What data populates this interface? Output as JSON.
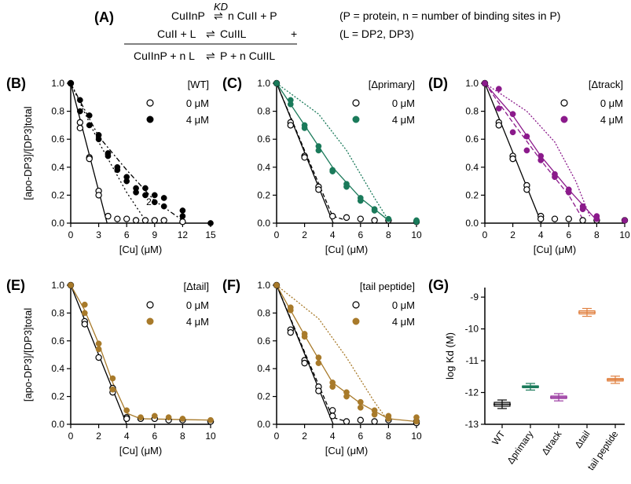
{
  "equations": {
    "label": "(A)",
    "row1_left": "CuIInP",
    "row1_arrow": "⇌",
    "row1_k": "KD",
    "row1_right": "n CuII + P",
    "row2_left": "CuII + L",
    "row2_arrow": "⇌",
    "row2_right": "CuIIL",
    "plus": "+",
    "row3_left": "CuIInP + n L",
    "row3_arrow": "⇌",
    "row3_right": "P + n CuIIL",
    "note1": "(P = protein, n = number of binding sites in P)",
    "note2": "(L = DP2, DP3)"
  },
  "colors": {
    "WT": "#000000",
    "primary": "#1a7a5a",
    "track": "#8b1a8b",
    "tail": "#a87a2a",
    "tailpep": "#a87a2a",
    "log_primary": "#1a7a5a",
    "log_track": "#9a3aa0",
    "log_tail": "#e08040",
    "log_tailpep": "#e08040"
  },
  "chart_data": [
    {
      "id": "B",
      "panel_label": "(B)",
      "type": "scatter",
      "legend_title": "[WT]",
      "legend": [
        "0 μM",
        "4 μM"
      ],
      "xlabel": "[Cu] (μM)",
      "ylabel": "[apo-DP3]/[DP3]total",
      "xlim": [
        0,
        15
      ],
      "ylim": [
        0,
        1
      ],
      "xticks": [
        "0",
        "3",
        "6",
        "9",
        "12",
        "15"
      ],
      "yticks": [
        "0.0",
        "0.2",
        "0.4",
        "0.6",
        "0.8",
        "1.0"
      ],
      "annotation": "2",
      "series": [
        {
          "name": "0 μM",
          "style": "open",
          "x": [
            0,
            1,
            1,
            2,
            2,
            3,
            3,
            4,
            5,
            6,
            7,
            8,
            9,
            10,
            12
          ],
          "y": [
            1,
            0.72,
            0.68,
            0.47,
            0.46,
            0.23,
            0.2,
            0.05,
            0.03,
            0.03,
            0.02,
            0.02,
            0.02,
            0.02,
            0.01
          ]
        },
        {
          "name": "4 μM",
          "style": "filled",
          "x": [
            0,
            1,
            1,
            2,
            2,
            3,
            3,
            4,
            4,
            5,
            5,
            6,
            6,
            7,
            7,
            8,
            8,
            9,
            9,
            10,
            10,
            12,
            12,
            15
          ],
          "y": [
            1,
            0.88,
            0.8,
            0.77,
            0.7,
            0.63,
            0.6,
            0.5,
            0.48,
            0.4,
            0.38,
            0.33,
            0.3,
            0.25,
            0.22,
            0.25,
            0.2,
            0.2,
            0.15,
            0.18,
            0.12,
            0.09,
            0.05,
            0
          ]
        }
      ]
    },
    {
      "id": "C",
      "panel_label": "(C)",
      "type": "scatter",
      "legend_title": "[Δprimary]",
      "legend": [
        "0 μM",
        "4 μM"
      ],
      "xlabel": "[Cu] (μM)",
      "ylabel": "",
      "xlim": [
        0,
        10
      ],
      "ylim": [
        0,
        1
      ],
      "xticks": [
        "0",
        "2",
        "4",
        "6",
        "8",
        "10"
      ],
      "yticks": [
        "0.0",
        "0.2",
        "0.4",
        "0.6",
        "0.8",
        "1.0"
      ],
      "series": [
        {
          "name": "0 μM",
          "style": "open",
          "x": [
            0,
            1,
            1,
            2,
            2,
            3,
            3,
            4,
            5,
            6,
            7,
            8,
            10
          ],
          "y": [
            1,
            0.72,
            0.7,
            0.48,
            0.47,
            0.26,
            0.24,
            0.05,
            0.04,
            0.03,
            0.02,
            0.02,
            0.01
          ]
        },
        {
          "name": "4 μM",
          "style": "filled",
          "x": [
            0,
            1,
            1,
            2,
            2,
            3,
            3,
            4,
            4,
            5,
            5,
            6,
            6,
            7,
            7,
            8,
            10,
            10
          ],
          "y": [
            1,
            0.88,
            0.85,
            0.7,
            0.68,
            0.55,
            0.52,
            0.38,
            0.37,
            0.28,
            0.26,
            0.18,
            0.16,
            0.1,
            0.09,
            0.03,
            0.02,
            0.01
          ]
        }
      ]
    },
    {
      "id": "D",
      "panel_label": "(D)",
      "type": "scatter",
      "legend_title": "[Δtrack]",
      "legend": [
        "0 μM",
        "4 μM"
      ],
      "xlabel": "[Cu] (μM)",
      "ylabel": "",
      "xlim": [
        0,
        10
      ],
      "ylim": [
        0,
        1
      ],
      "xticks": [
        "0",
        "2",
        "4",
        "6",
        "8",
        "10"
      ],
      "yticks": [
        "0.0",
        "0.2",
        "0.4",
        "0.6",
        "0.8",
        "1.0"
      ],
      "series": [
        {
          "name": "0 μM",
          "style": "open",
          "x": [
            0,
            1,
            1,
            2,
            2,
            3,
            3,
            4,
            4,
            5,
            6,
            7,
            8,
            10
          ],
          "y": [
            1,
            0.72,
            0.7,
            0.48,
            0.46,
            0.27,
            0.24,
            0.05,
            0.03,
            0.03,
            0.03,
            0.02,
            0.02,
            0.02
          ]
        },
        {
          "name": "4 μM",
          "style": "filled",
          "x": [
            0,
            1,
            1,
            2,
            2,
            3,
            3,
            4,
            4,
            5,
            5,
            6,
            6,
            7,
            7,
            8,
            8,
            10
          ],
          "y": [
            1,
            0.96,
            0.82,
            0.78,
            0.65,
            0.62,
            0.52,
            0.48,
            0.45,
            0.35,
            0.33,
            0.24,
            0.22,
            0.12,
            0.1,
            0.05,
            0.03,
            0.02
          ]
        }
      ]
    },
    {
      "id": "E",
      "panel_label": "(E)",
      "type": "scatter",
      "legend_title": "[Δtail]",
      "legend": [
        "0 μM",
        "4 μM"
      ],
      "xlabel": "[Cu] (μM)",
      "ylabel": "[apo-DP3]/[DP3]total",
      "xlim": [
        0,
        10
      ],
      "ylim": [
        0,
        1
      ],
      "xticks": [
        "0",
        "2",
        "4",
        "6",
        "8",
        "10"
      ],
      "yticks": [
        "0.0",
        "0.2",
        "0.4",
        "0.6",
        "0.8",
        "1.0"
      ],
      "series": [
        {
          "name": "0 μM",
          "style": "open",
          "x": [
            0,
            1,
            1,
            2,
            3,
            3,
            4,
            4,
            5,
            6,
            7,
            8,
            10,
            10
          ],
          "y": [
            1,
            0.74,
            0.72,
            0.48,
            0.26,
            0.23,
            0.05,
            0.04,
            0.04,
            0.04,
            0.03,
            0.03,
            0.02,
            0.02
          ]
        },
        {
          "name": "4 μM",
          "style": "filled",
          "x": [
            0,
            1,
            1,
            2,
            2,
            3,
            3,
            4,
            5,
            6,
            7,
            8,
            10
          ],
          "y": [
            1,
            0.86,
            0.8,
            0.58,
            0.54,
            0.33,
            0.25,
            0.1,
            0.05,
            0.06,
            0.05,
            0.04,
            0.03
          ]
        }
      ]
    },
    {
      "id": "F",
      "panel_label": "(F)",
      "type": "scatter",
      "legend_title": "[tail peptide]",
      "legend": [
        "0 μM",
        "4 μM"
      ],
      "xlabel": "[Cu] (μM)",
      "ylabel": "",
      "xlim": [
        0,
        10
      ],
      "ylim": [
        0,
        1
      ],
      "xticks": [
        "0",
        "2",
        "4",
        "6",
        "8",
        "10"
      ],
      "yticks": [
        "0.0",
        "0.2",
        "0.4",
        "0.6",
        "0.8",
        "1.0"
      ],
      "series": [
        {
          "name": "0 μM",
          "style": "open",
          "x": [
            0,
            1,
            1,
            2,
            2,
            3,
            3,
            4,
            4,
            5,
            6,
            7,
            8,
            10,
            10
          ],
          "y": [
            1,
            0.68,
            0.66,
            0.46,
            0.44,
            0.27,
            0.24,
            0.1,
            0.06,
            0.02,
            0.03,
            0.02,
            0.03,
            0.02,
            0.01
          ]
        },
        {
          "name": "4 μM",
          "style": "filled",
          "x": [
            0,
            1,
            1,
            2,
            2,
            3,
            3,
            4,
            4,
            5,
            5,
            6,
            6,
            7,
            7,
            8,
            8,
            10,
            10
          ],
          "y": [
            1,
            0.84,
            0.82,
            0.65,
            0.63,
            0.48,
            0.44,
            0.3,
            0.27,
            0.23,
            0.2,
            0.16,
            0.12,
            0.1,
            0.07,
            0.06,
            0.04,
            0.05,
            0.02
          ]
        }
      ]
    },
    {
      "id": "G",
      "panel_label": "(G)",
      "type": "box",
      "xlabel": "",
      "ylabel": "log Kd (M)",
      "ylim": [
        -13,
        -8.7
      ],
      "yticks": [
        "-13",
        "-12",
        "-11",
        "-10",
        "-9"
      ],
      "categories": [
        "WT",
        "Δprimary",
        "Δtrack",
        "Δtail",
        "tail peptide"
      ],
      "values": [
        -12.37,
        -11.82,
        -12.15,
        -9.48,
        -11.6
      ],
      "errors": [
        0.06,
        0.03,
        0.04,
        0.05,
        0.04
      ]
    }
  ]
}
